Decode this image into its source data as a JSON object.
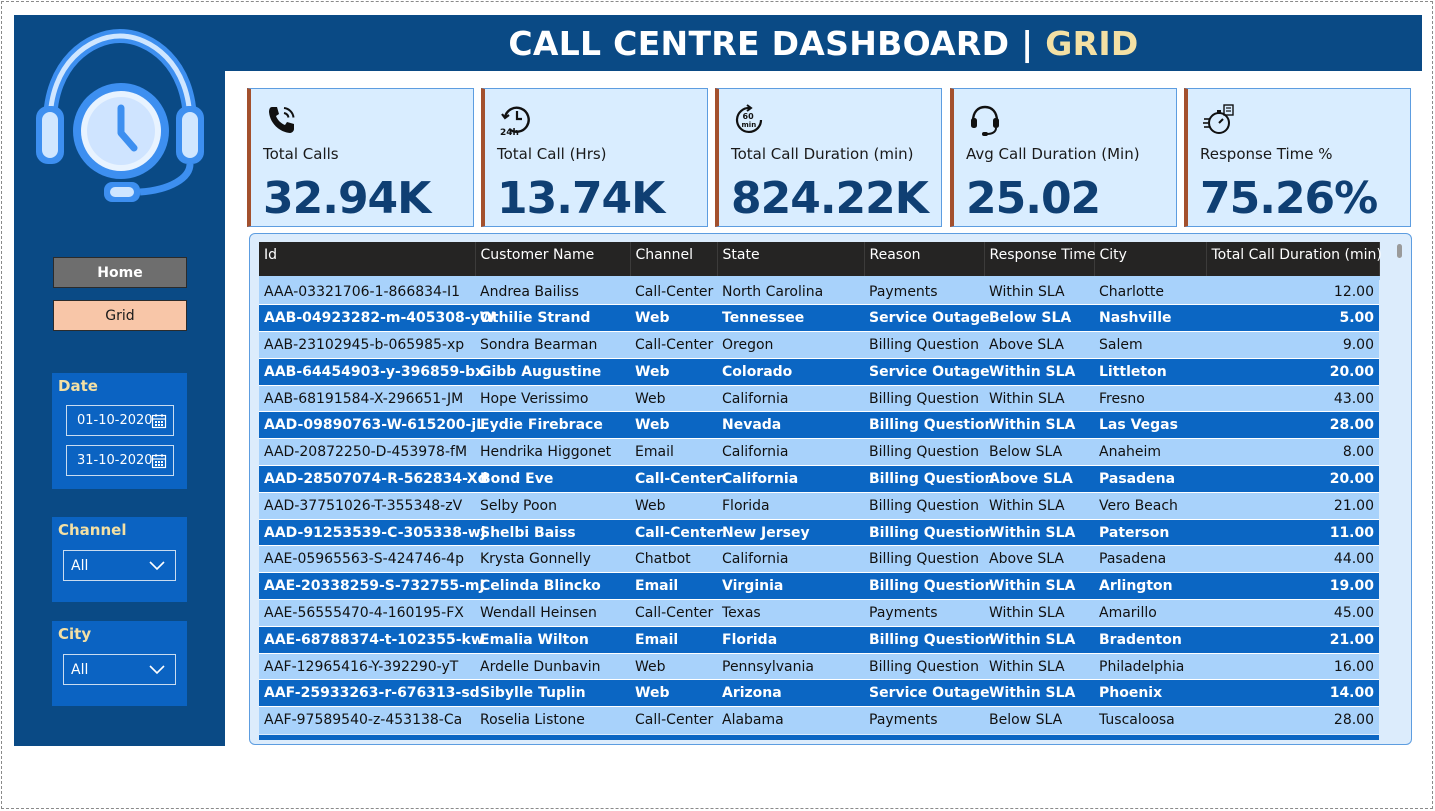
{
  "header": {
    "title_main": "CALL CENTRE DASHBOARD |",
    "title_accent": "GRID"
  },
  "nav": {
    "home_label": "Home",
    "grid_label": "Grid"
  },
  "filters": {
    "date": {
      "title": "Date",
      "start": "01-10-2020",
      "end": "31-10-2020"
    },
    "channel": {
      "title": "Channel",
      "selected": "All"
    },
    "city": {
      "title": "City",
      "selected": "All"
    }
  },
  "kpis": [
    {
      "icon": "phone-call-icon",
      "label": "Total Calls",
      "value": "32.94K"
    },
    {
      "icon": "clock-24h-icon",
      "label": "Total Call (Hrs)",
      "value": "13.74K"
    },
    {
      "icon": "timer-60min-icon",
      "label": "Total Call Duration (min)",
      "value": "824.22K"
    },
    {
      "icon": "headset-icon",
      "label": "Avg Call Duration (Min)",
      "value": "25.02"
    },
    {
      "icon": "stopwatch-speed-icon",
      "label": "Response Time %",
      "value": "75.26%"
    }
  ],
  "grid": {
    "columns": [
      "Id",
      "Customer Name",
      "Channel",
      "State",
      "Reason",
      "Response Time",
      "City",
      "Total Call Duration (min)"
    ],
    "rows": [
      [
        "AAA-03321706-1-866834-I1",
        "Andrea Bailiss",
        "Call-Center",
        "North Carolina",
        "Payments",
        "Within SLA",
        "Charlotte",
        "12.00"
      ],
      [
        "AAB-04923282-m-405308-yW",
        "Othilie Strand",
        "Web",
        "Tennessee",
        "Service Outage",
        "Below SLA",
        "Nashville",
        "5.00"
      ],
      [
        "AAB-23102945-b-065985-xp",
        "Sondra Bearman",
        "Call-Center",
        "Oregon",
        "Billing Question",
        "Above SLA",
        "Salem",
        "9.00"
      ],
      [
        "AAB-64454903-y-396859-bx",
        "Gibb Augustine",
        "Web",
        "Colorado",
        "Service Outage",
        "Within SLA",
        "Littleton",
        "20.00"
      ],
      [
        "AAB-68191584-X-296651-JM",
        "Hope Verissimo",
        "Web",
        "California",
        "Billing Question",
        "Within SLA",
        "Fresno",
        "43.00"
      ],
      [
        "AAD-09890763-W-615200-jL",
        "Eydie Firebrace",
        "Web",
        "Nevada",
        "Billing Question",
        "Within SLA",
        "Las Vegas",
        "28.00"
      ],
      [
        "AAD-20872250-D-453978-fM",
        "Hendrika Higgonet",
        "Email",
        "California",
        "Billing Question",
        "Below SLA",
        "Anaheim",
        "8.00"
      ],
      [
        "AAD-28507074-R-562834-Xd",
        "Bond Eve",
        "Call-Center",
        "California",
        "Billing Question",
        "Above SLA",
        "Pasadena",
        "20.00"
      ],
      [
        "AAD-37751026-T-355348-zV",
        "Selby Poon",
        "Web",
        "Florida",
        "Billing Question",
        "Within SLA",
        "Vero Beach",
        "21.00"
      ],
      [
        "AAD-91253539-C-305338-wj",
        "Shelbi Baiss",
        "Call-Center",
        "New Jersey",
        "Billing Question",
        "Within SLA",
        "Paterson",
        "11.00"
      ],
      [
        "AAE-05965563-S-424746-4p",
        "Krysta Gonnelly",
        "Chatbot",
        "California",
        "Billing Question",
        "Above SLA",
        "Pasadena",
        "44.00"
      ],
      [
        "AAE-20338259-S-732755-mJ",
        "Celinda Blincko",
        "Email",
        "Virginia",
        "Billing Question",
        "Within SLA",
        "Arlington",
        "19.00"
      ],
      [
        "AAE-56555470-4-160195-FX",
        "Wendall Heinsen",
        "Call-Center",
        "Texas",
        "Payments",
        "Within SLA",
        "Amarillo",
        "45.00"
      ],
      [
        "AAE-68788374-t-102355-kw",
        "Emalia Wilton",
        "Email",
        "Florida",
        "Billing Question",
        "Within SLA",
        "Bradenton",
        "21.00"
      ],
      [
        "AAF-12965416-Y-392290-yT",
        "Ardelle Dunbavin",
        "Web",
        "Pennsylvania",
        "Billing Question",
        "Within SLA",
        "Philadelphia",
        "16.00"
      ],
      [
        "AAF-25933263-r-676313-sd",
        "Sibylle Tuplin",
        "Web",
        "Arizona",
        "Service Outage",
        "Within SLA",
        "Phoenix",
        "14.00"
      ],
      [
        "AAF-97589540-z-453138-Ca",
        "Roselia Listone",
        "Call-Center",
        "Alabama",
        "Payments",
        "Below SLA",
        "Tuscaloosa",
        "28.00"
      ]
    ]
  }
}
